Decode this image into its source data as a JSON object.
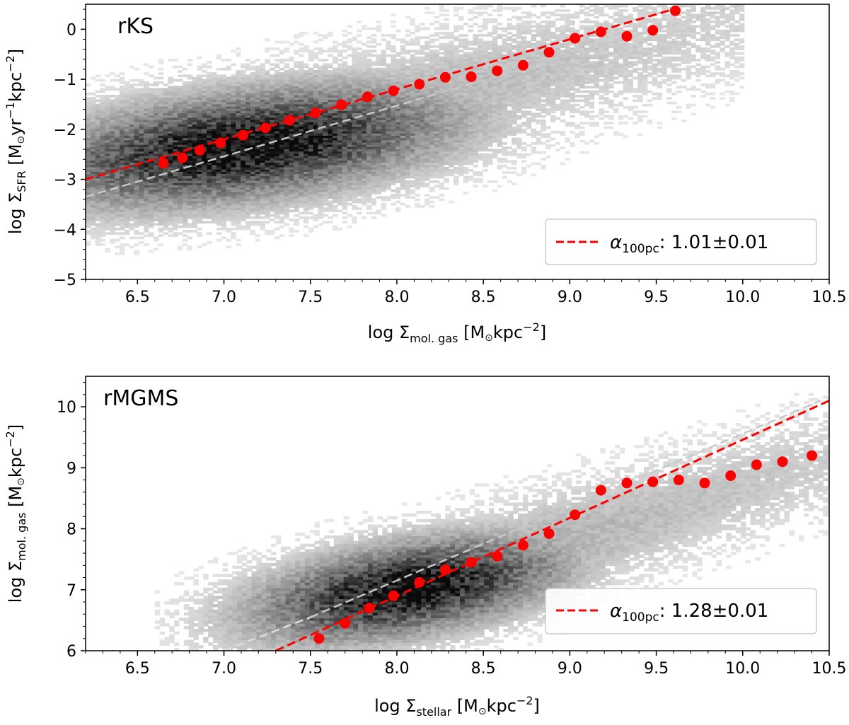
{
  "chart_data": [
    {
      "type": "scatter",
      "panel_label": "rKS",
      "xlabel": "log Σ_mol.gas [M⊙kpc⁻²]",
      "xlabel_parts": {
        "prefix": "log Σ",
        "sub": "mol. gas",
        "unit_open": " [M",
        "sun": "⊙",
        "unit_mid": "kpc",
        "sup": "−2",
        "unit_close": "]"
      },
      "ylabel": "log Σ_SFR [M⊙yr⁻¹kpc⁻²]",
      "ylabel_parts": {
        "prefix": "log Σ",
        "sub": "SFR",
        "unit_open": " [M",
        "sun": "⊙",
        "unit_mid": "yr",
        "sup": "−1",
        "unit_mid2": "kpc",
        "sup2": "−2",
        "unit_close": "]"
      },
      "xlim": [
        6.2,
        10.5
      ],
      "ylim": [
        -5,
        0.5
      ],
      "xticks": [
        6.5,
        7.0,
        7.5,
        8.0,
        8.5,
        9.0,
        9.5,
        10.0,
        10.5
      ],
      "xtick_labels": [
        "6.5",
        "7.0",
        "7.5",
        "8.0",
        "8.5",
        "9.0",
        "9.5",
        "10.0",
        "10.5"
      ],
      "yticks": [
        -5,
        -4,
        -3,
        -2,
        -1,
        0
      ],
      "ytick_labels": [
        "−5",
        "−4",
        "−3",
        "−2",
        "−1",
        "0"
      ],
      "background": {
        "type": "density_histogram",
        "center": [
          7.1,
          -2.35
        ],
        "spread_along": 0.95,
        "spread_across": 0.6,
        "slope": 0.95,
        "x_range": [
          6.2,
          10.0
        ]
      },
      "binned_medians": {
        "color": "#ff0000",
        "x": [
          6.65,
          6.76,
          6.86,
          6.98,
          7.11,
          7.24,
          7.38,
          7.53,
          7.68,
          7.83,
          7.98,
          8.13,
          8.28,
          8.43,
          8.58,
          8.73,
          8.88,
          9.03,
          9.18,
          9.33,
          9.48,
          9.61
        ],
        "y": [
          -2.68,
          -2.57,
          -2.42,
          -2.27,
          -2.12,
          -1.97,
          -1.82,
          -1.67,
          -1.51,
          -1.35,
          -1.23,
          -1.1,
          -0.96,
          -0.95,
          -0.83,
          -0.72,
          -0.46,
          -0.18,
          -0.05,
          -0.14,
          -0.02,
          0.37
        ]
      },
      "fit_line": {
        "color": "#ff0000",
        "style": "dashed",
        "x": [
          6.2,
          9.6
        ],
        "y": [
          -3.0,
          0.4
        ]
      },
      "reference_line": {
        "color": "#c8c8c8",
        "style": "dashed",
        "x": [
          6.2,
          10.0
        ],
        "y": [
          -3.35,
          0.5
        ]
      },
      "legend": {
        "position": "lower-right",
        "alpha_symbol": "α",
        "alpha_sub": "100pc",
        "value": ": 1.01±0.01"
      }
    },
    {
      "type": "scatter",
      "panel_label": "rMGMS",
      "xlabel": "log Σ_stellar [M⊙kpc⁻²]",
      "xlabel_parts": {
        "prefix": "log Σ",
        "sub": "stellar",
        "unit_open": " [M",
        "sun": "⊙",
        "unit_mid": "kpc",
        "sup": "−2",
        "unit_close": "]"
      },
      "ylabel": "log Σ_mol.gas [M⊙kpc⁻²]",
      "ylabel_parts": {
        "prefix": "log Σ",
        "sub": "mol. gas",
        "unit_open": " [M",
        "sun": "⊙",
        "unit_mid": "kpc",
        "sup": "−2",
        "unit_close": "]"
      },
      "xlim": [
        6.2,
        10.5
      ],
      "ylim": [
        6,
        10.5
      ],
      "xticks": [
        6.5,
        7.0,
        7.5,
        8.0,
        8.5,
        9.0,
        9.5,
        10.0,
        10.5
      ],
      "xtick_labels": [
        "6.5",
        "7.0",
        "7.5",
        "8.0",
        "8.5",
        "9.0",
        "9.5",
        "10.0",
        "10.5"
      ],
      "yticks": [
        6,
        7,
        8,
        9,
        10
      ],
      "ytick_labels": [
        "6",
        "7",
        "8",
        "9",
        "10"
      ],
      "background": {
        "type": "density_histogram",
        "center": [
          8.05,
          7.0
        ],
        "spread_along": 0.7,
        "spread_across": 0.42,
        "slope": 0.9,
        "x_range": [
          6.6,
          10.5
        ]
      },
      "binned_medians": {
        "color": "#ff0000",
        "x": [
          7.55,
          7.7,
          7.84,
          7.98,
          8.13,
          8.28,
          8.43,
          8.58,
          8.73,
          8.88,
          9.03,
          9.18,
          9.33,
          9.48,
          9.63,
          9.78,
          9.93,
          10.08,
          10.23,
          10.4
        ],
        "y": [
          6.2,
          6.45,
          6.7,
          6.9,
          7.12,
          7.33,
          7.45,
          7.55,
          7.73,
          7.92,
          8.23,
          8.63,
          8.75,
          8.77,
          8.8,
          8.75,
          8.87,
          9.05,
          9.1,
          9.2
        ]
      },
      "fit_line": {
        "color": "#ff0000",
        "style": "dashed",
        "x": [
          7.3,
          10.5
        ],
        "y": [
          6.0,
          10.1
        ]
      },
      "reference_line": {
        "color": "#c8c8c8",
        "style": "dashed",
        "x": [
          7.5,
          10.45
        ],
        "y": [
          6.55,
          10.1
        ]
      },
      "reference_line_faint": {
        "color": "#dcdcdc",
        "style": "dashed",
        "x": [
          7.0,
          7.5
        ],
        "y": [
          6.0,
          6.55
        ]
      },
      "legend": {
        "position": "lower-right",
        "alpha_symbol": "α",
        "alpha_sub": "100pc",
        "value": ": 1.28±0.01"
      }
    }
  ]
}
